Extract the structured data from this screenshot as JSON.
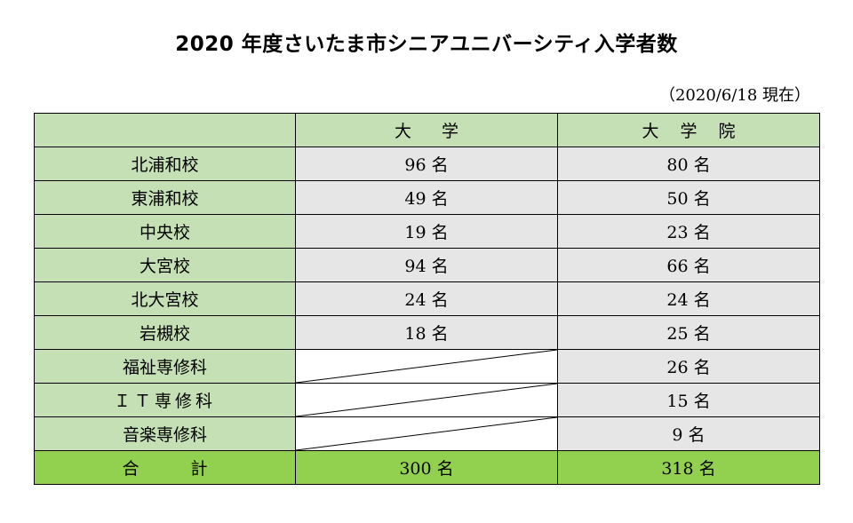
{
  "title": "2020 年度さいたま市シニアユニバーシティ入学者数",
  "as_of": "（2020/6/18 現在）",
  "table": {
    "header": {
      "campus": "",
      "university": "大学",
      "graduate": "大学院"
    },
    "rows": [
      {
        "campus": "北浦和校",
        "university": "96 名",
        "graduate": "80 名"
      },
      {
        "campus": "東浦和校",
        "university": "49 名",
        "graduate": "50 名"
      },
      {
        "campus": "中央校",
        "university": "19 名",
        "graduate": "23 名"
      },
      {
        "campus": "大宮校",
        "university": "94 名",
        "graduate": "66 名"
      },
      {
        "campus": "北大宮校",
        "university": "24 名",
        "graduate": "24 名"
      },
      {
        "campus": "岩槻校",
        "university": "18 名",
        "graduate": "25 名"
      },
      {
        "campus": "福祉専修科",
        "university": "",
        "graduate": "26 名"
      },
      {
        "campus": "ＩＴ専修科",
        "university": "",
        "graduate": "15 名"
      },
      {
        "campus": "音楽専修科",
        "university": "",
        "graduate": "9 名"
      }
    ],
    "total": {
      "label": "合計",
      "university": "300 名",
      "graduate": "318 名"
    }
  },
  "colors": {
    "header_fill": "#c5e0b4",
    "campus_fill": "#c5e0b4",
    "value_fill": "#e7e6e6",
    "total_fill": "#92d050"
  }
}
